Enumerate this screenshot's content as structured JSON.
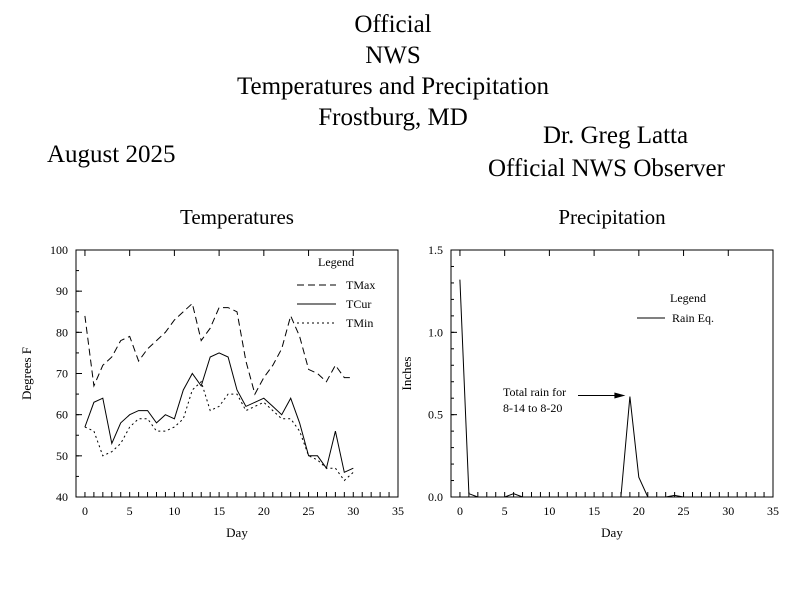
{
  "header": {
    "title_lines": [
      "Official",
      "NWS",
      "Temperatures and Precipitation",
      "Frostburg, MD"
    ],
    "month": "August 2025",
    "observer_name": "Dr. Greg Latta",
    "observer_role": "Official NWS Observer"
  },
  "chart_data": [
    {
      "type": "line",
      "title": "Temperatures",
      "xlabel": "Day",
      "ylabel": "Degrees F",
      "xlim": [
        -1,
        35
      ],
      "ylim": [
        40,
        100
      ],
      "xticks": [
        0,
        5,
        10,
        15,
        20,
        25,
        30,
        35
      ],
      "yticks": [
        40,
        50,
        60,
        70,
        80,
        90,
        100
      ],
      "legend_title": "Legend",
      "legend_position": "top-right",
      "x": [
        0,
        1,
        2,
        3,
        4,
        5,
        6,
        7,
        8,
        9,
        10,
        11,
        12,
        13,
        14,
        15,
        16,
        17,
        18,
        19,
        20,
        21,
        22,
        23,
        24,
        25,
        26,
        27,
        28,
        29,
        30
      ],
      "series": [
        {
          "name": "TMax",
          "style": "dashed",
          "values": [
            84,
            67,
            72,
            74,
            78,
            79,
            73,
            76,
            78,
            80,
            83,
            85,
            87,
            78,
            81,
            86,
            86,
            85,
            73,
            65,
            69,
            72,
            76,
            84,
            79,
            71,
            70,
            68,
            72,
            69,
            69
          ]
        },
        {
          "name": "TCur",
          "style": "solid",
          "values": [
            57,
            63,
            64,
            53,
            58,
            60,
            61,
            61,
            58,
            60,
            59,
            66,
            70,
            67,
            74,
            75,
            74,
            66,
            62,
            63,
            64,
            62,
            60,
            64,
            58,
            50,
            50,
            47,
            56,
            46,
            47
          ]
        },
        {
          "name": "TMin",
          "style": "dotted",
          "values": [
            57,
            56,
            50,
            51,
            53,
            57,
            59,
            59,
            56,
            56,
            57,
            59,
            66,
            68,
            61,
            62,
            65,
            65,
            61,
            62,
            63,
            61,
            59,
            59,
            56,
            50,
            49,
            47,
            47,
            44,
            46
          ]
        }
      ]
    },
    {
      "type": "line",
      "title": "Precipitation",
      "xlabel": "Day",
      "ylabel": "Inches",
      "xlim": [
        -1,
        35
      ],
      "ylim": [
        0,
        1.5
      ],
      "xticks": [
        0,
        5,
        10,
        15,
        20,
        25,
        30,
        35
      ],
      "yticks": [
        0.0,
        0.5,
        1.0,
        1.5
      ],
      "ytick_labels": [
        "0.0",
        "0.5",
        "1.0",
        "1.5"
      ],
      "legend_title": "Legend",
      "legend_position": "top-right",
      "x": [
        0,
        1,
        2,
        3,
        4,
        5,
        6,
        7,
        8,
        9,
        10,
        11,
        12,
        13,
        14,
        15,
        16,
        17,
        18,
        19,
        20,
        21,
        22,
        23,
        24,
        25,
        26,
        27,
        28,
        29,
        30
      ],
      "series": [
        {
          "name": "Rain Eq.",
          "style": "solid",
          "values": [
            1.32,
            0.02,
            0,
            0,
            0,
            0,
            0.02,
            0,
            0,
            0,
            0,
            0,
            0,
            0,
            0,
            0,
            0,
            0,
            0,
            0.61,
            0.12,
            0,
            0,
            0,
            0.01,
            0,
            0,
            0,
            0,
            0,
            0
          ]
        }
      ],
      "annotation": {
        "lines": [
          "Total rain for",
          "8-14 to 8-20"
        ],
        "points_to_day": 18.5,
        "points_to_value": 0.61
      }
    }
  ]
}
